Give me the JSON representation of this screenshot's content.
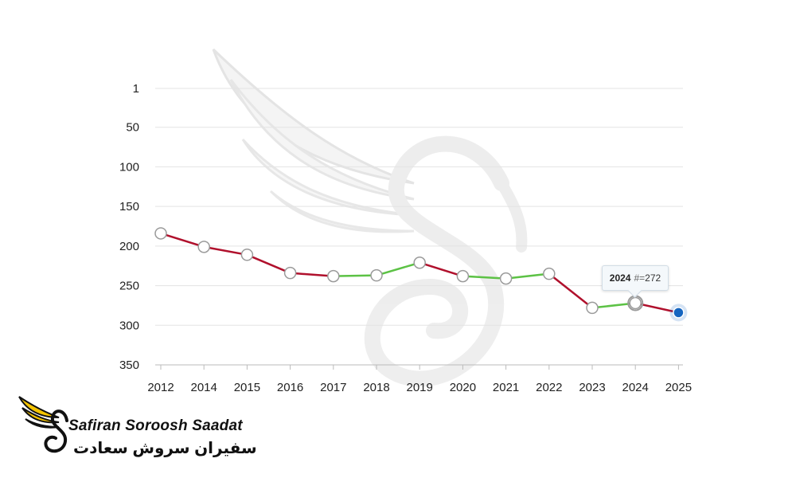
{
  "chart_data": {
    "type": "line",
    "title": "",
    "xlabel": "",
    "ylabel": "",
    "y_inverted": true,
    "ylim": [
      1,
      350
    ],
    "y_ticks": [
      1,
      50,
      100,
      150,
      200,
      250,
      300,
      350
    ],
    "categories": [
      "2012",
      "2014",
      "2015",
      "2016",
      "2017",
      "2018",
      "2019",
      "2020",
      "2021",
      "2022",
      "2023",
      "2024",
      "2025"
    ],
    "values": [
      184,
      201,
      211,
      234,
      238,
      237,
      221,
      238,
      241,
      235,
      278,
      272,
      284
    ],
    "segment_colors": [
      "#b0102c",
      "#b0102c",
      "#b0102c",
      "#b0102c",
      "#5cc245",
      "#5cc245",
      "#b0102c",
      "#5cc245",
      "#5cc245",
      "#b0102c",
      "#5cc245",
      "#b0102c"
    ],
    "highlight_last_color": "#1565c0",
    "grid": true
  },
  "tooltip": {
    "year": "2024",
    "separator": "#=",
    "value": "272"
  },
  "logo": {
    "name_en": "Safiran Soroosh Saadat",
    "name_fa": "سفیران سروش سعادت",
    "icon": "winged-s-icon",
    "colors": {
      "wing": "#f5c400",
      "text": "#111111"
    }
  }
}
